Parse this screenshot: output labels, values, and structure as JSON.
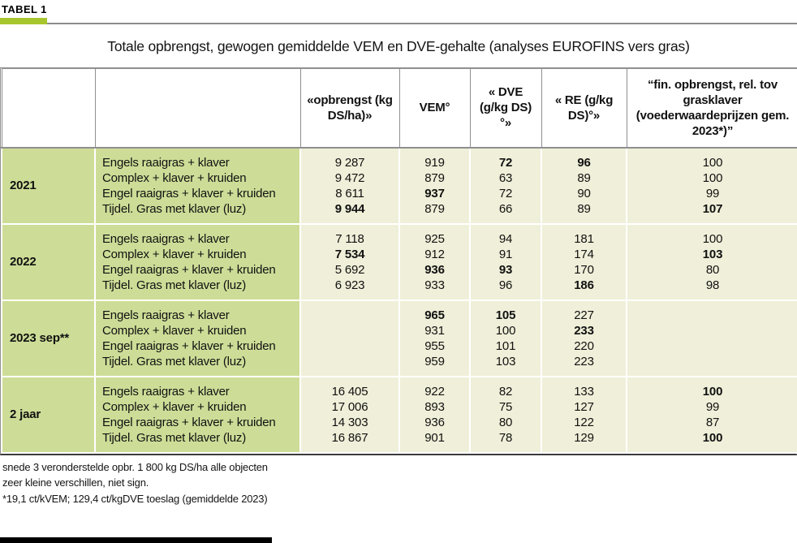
{
  "page": {
    "tag": "TABEL 1",
    "title": "Totale opbrengst, gewogen gemiddelde VEM en DVE-gehalte (analyses EUROFINS vers gras)"
  },
  "colors": {
    "accent_green": "#a7c62d",
    "group_green": "#cddd97",
    "cell_cream": "#f0efd9"
  },
  "table": {
    "columns": [
      {
        "id": "year",
        "label": ""
      },
      {
        "id": "variety",
        "label": ""
      },
      {
        "id": "opbrengst",
        "label": "«opbrengst (kg DS/ha)»"
      },
      {
        "id": "vem",
        "label": "VEM°"
      },
      {
        "id": "dve",
        "label": "« DVE (g/kg DS)°»"
      },
      {
        "id": "re",
        "label": "« RE (g/kg DS)°»"
      },
      {
        "id": "fin",
        "label": "“fin. opbrengst, rel. tov grasklaver (voederwaardeprijzen gem. 2023*)”"
      }
    ],
    "groups": [
      {
        "id": "2021",
        "label": "2021",
        "rows": [
          {
            "variety": "Engels raaigras + klaver",
            "opbrengst": "9 287",
            "vem": "919",
            "dve": "72",
            "re": "96",
            "fin": "100",
            "bold": [
              "dve",
              "re"
            ]
          },
          {
            "variety": "Complex + klaver + kruiden",
            "opbrengst": "9 472",
            "vem": "879",
            "dve": "63",
            "re": "89",
            "fin": "100",
            "bold": []
          },
          {
            "variety": "Engel raaigras + klaver + kruiden",
            "opbrengst": "8 611",
            "vem": "937",
            "dve": "72",
            "re": "90",
            "fin": "99",
            "bold": [
              "vem"
            ]
          },
          {
            "variety": "Tijdel. Gras met klaver (luz)",
            "opbrengst": "9 944",
            "vem": "879",
            "dve": "66",
            "re": "89",
            "fin": "107",
            "bold": [
              "opbrengst",
              "fin"
            ]
          }
        ]
      },
      {
        "id": "2022",
        "label": "2022",
        "rows": [
          {
            "variety": "Engels raaigras + klaver",
            "opbrengst": "7 118",
            "vem": "925",
            "dve": "94",
            "re": "181",
            "fin": "100",
            "bold": []
          },
          {
            "variety": "Complex + klaver + kruiden",
            "opbrengst": "7 534",
            "vem": "912",
            "dve": "91",
            "re": "174",
            "fin": "103",
            "bold": [
              "opbrengst",
              "fin"
            ]
          },
          {
            "variety": "Engel raaigras + klaver + kruiden",
            "opbrengst": "5 692",
            "vem": "936",
            "dve": "93",
            "re": "170",
            "fin": "80",
            "bold": [
              "vem",
              "dve"
            ]
          },
          {
            "variety": "Tijdel. Gras met klaver (luz)",
            "opbrengst": "6 923",
            "vem": "933",
            "dve": "96",
            "re": "186",
            "fin": "98",
            "bold": [
              "re"
            ]
          }
        ]
      },
      {
        "id": "2023sep",
        "label": "2023 sep**",
        "rows": [
          {
            "variety": "Engels raaigras + klaver",
            "opbrengst": "",
            "vem": "965",
            "dve": "105",
            "re": "227",
            "fin": "",
            "bold": [
              "vem",
              "dve"
            ]
          },
          {
            "variety": "Complex + klaver + kruiden",
            "opbrengst": "",
            "vem": "931",
            "dve": "100",
            "re": "233",
            "fin": "",
            "bold": [
              "re"
            ]
          },
          {
            "variety": "Engel raaigras + klaver + kruiden",
            "opbrengst": "",
            "vem": "955",
            "dve": "101",
            "re": "220",
            "fin": "",
            "bold": []
          },
          {
            "variety": "Tijdel. Gras met klaver (luz)",
            "opbrengst": "",
            "vem": "959",
            "dve": "103",
            "re": "223",
            "fin": "",
            "bold": []
          }
        ]
      },
      {
        "id": "2jaar",
        "label": "2 jaar",
        "rows": [
          {
            "variety": "Engels raaigras + klaver",
            "opbrengst": "16 405",
            "vem": "922",
            "dve": "82",
            "re": "133",
            "fin": "100",
            "bold": [
              "fin"
            ]
          },
          {
            "variety": "Complex + klaver + kruiden",
            "opbrengst": "17 006",
            "vem": "893",
            "dve": "75",
            "re": "127",
            "fin": "99",
            "bold": []
          },
          {
            "variety": "Engel raaigras + klaver + kruiden",
            "opbrengst": "14 303",
            "vem": "936",
            "dve": "80",
            "re": "122",
            "fin": "87",
            "bold": []
          },
          {
            "variety": "Tijdel. Gras met klaver (luz)",
            "opbrengst": "16 867",
            "vem": "901",
            "dve": "78",
            "re": "129",
            "fin": "100",
            "bold": [
              "fin"
            ]
          }
        ]
      }
    ]
  },
  "footnotes": [
    "snede 3 veronderstelde opbr. 1 800 kg DS/ha alle objecten",
    "zeer kleine verschillen, niet sign.",
    "*19,1 ct/kVEM; 129,4 ct/kgDVE toeslag (gemiddelde 2023)"
  ]
}
